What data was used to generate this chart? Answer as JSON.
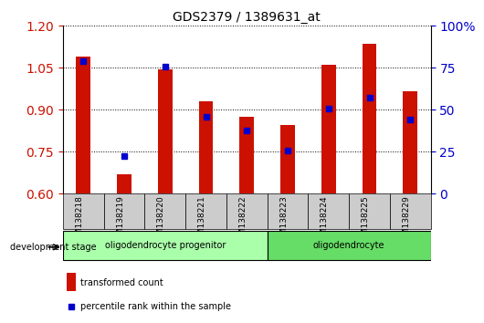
{
  "title": "GDS2379 / 1389631_at",
  "samples": [
    "GSM138218",
    "GSM138219",
    "GSM138220",
    "GSM138221",
    "GSM138222",
    "GSM138223",
    "GSM138224",
    "GSM138225",
    "GSM138229"
  ],
  "red_values": [
    1.09,
    0.67,
    1.045,
    0.93,
    0.875,
    0.845,
    1.06,
    1.135,
    0.965
  ],
  "blue_values": [
    1.075,
    0.735,
    1.055,
    0.875,
    0.825,
    0.755,
    0.905,
    0.945,
    0.865
  ],
  "ylim_left": [
    0.6,
    1.2
  ],
  "ylim_right": [
    0,
    100
  ],
  "yticks_left": [
    0.6,
    0.75,
    0.9,
    1.05,
    1.2
  ],
  "yticks_right": [
    0,
    25,
    50,
    75,
    100
  ],
  "bar_color": "#cc1100",
  "dot_color": "#0000cc",
  "tick_color_left": "#cc1100",
  "tick_color_right": "#0000cc",
  "group1_label": "oligodendrocyte progenitor",
  "group2_label": "oligodendrocyte",
  "group1_samples": 5,
  "group2_samples": 4,
  "stage_label": "development stage",
  "legend_red": "transformed count",
  "legend_blue": "percentile rank within the sample",
  "group1_color": "#aaffaa",
  "group2_color": "#66dd66",
  "xlabel_bg": "#cccccc"
}
